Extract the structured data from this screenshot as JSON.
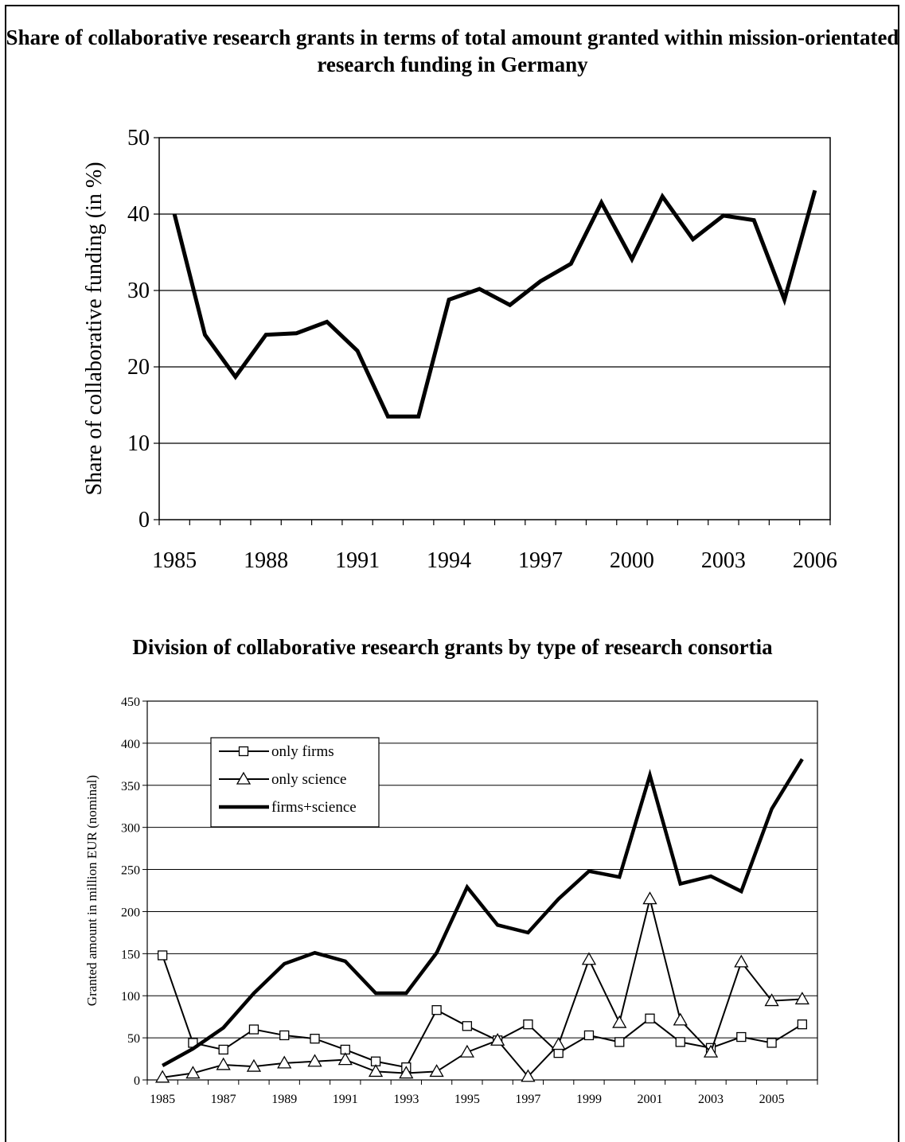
{
  "chart_data": [
    {
      "type": "line",
      "title": "Share of collaborative research grants in terms of total amount granted within mission-orientated research funding in Germany",
      "ylabel": "Share of collaborative funding (in %)",
      "xlabel": "",
      "ylim": [
        0,
        50
      ],
      "yticks": [
        "0",
        "10",
        "20",
        "30",
        "40",
        "50"
      ],
      "xticks": [
        "1985",
        "1988",
        "1991",
        "1994",
        "1997",
        "2000",
        "2003",
        "2006"
      ],
      "grid": "horizontal",
      "x": [
        1985,
        1986,
        1987,
        1988,
        1989,
        1990,
        1991,
        1992,
        1993,
        1994,
        1995,
        1996,
        1997,
        1998,
        1999,
        2000,
        2001,
        2002,
        2003,
        2004,
        2005,
        2006
      ],
      "series": [
        {
          "values": [
            40,
            24.2,
            18.7,
            24.2,
            24.4,
            25.9,
            22.1,
            13.5,
            13.5,
            28.8,
            30.2,
            28.1,
            31.2,
            33.5,
            41.5,
            34.1,
            42.3,
            36.7,
            39.8,
            39.2,
            28.8,
            43.1
          ]
        }
      ]
    },
    {
      "type": "line",
      "title": "Division of collaborative research grants by type of research consortia",
      "ylabel": "Granted amount in million EUR (nominal)",
      "xlabel": "",
      "ylim": [
        0,
        450
      ],
      "yticks": [
        "0",
        "50",
        "100",
        "150",
        "200",
        "250",
        "300",
        "350",
        "400",
        "450"
      ],
      "xticks": [
        "1985",
        "1987",
        "1989",
        "1991",
        "1993",
        "1995",
        "1997",
        "1999",
        "2001",
        "2003",
        "2005"
      ],
      "grid": "horizontal",
      "legend": "top-left",
      "x": [
        1985,
        1986,
        1987,
        1988,
        1989,
        1990,
        1991,
        1992,
        1993,
        1994,
        1995,
        1996,
        1997,
        1998,
        1999,
        2000,
        2001,
        2002,
        2003,
        2004,
        2005,
        2006
      ],
      "series": [
        {
          "name": "only firms",
          "marker": "square",
          "values": [
            148,
            44,
            36,
            60,
            53,
            49,
            36,
            22,
            15,
            83,
            64,
            47,
            66,
            32,
            53,
            45,
            73,
            45,
            38,
            51,
            44,
            66
          ]
        },
        {
          "name": "only science",
          "marker": "triangle",
          "values": [
            3,
            8,
            18,
            16,
            20,
            22,
            24,
            10,
            8,
            10,
            33,
            47,
            4,
            42,
            143,
            68,
            215,
            71,
            33,
            140,
            94,
            96
          ]
        },
        {
          "name": "firms+science",
          "marker": "none",
          "values": [
            17,
            37,
            62,
            103,
            138,
            151,
            141,
            103,
            103,
            151,
            229,
            184,
            175,
            215,
            248,
            241,
            362,
            233,
            242,
            224,
            322,
            381
          ]
        }
      ]
    }
  ]
}
